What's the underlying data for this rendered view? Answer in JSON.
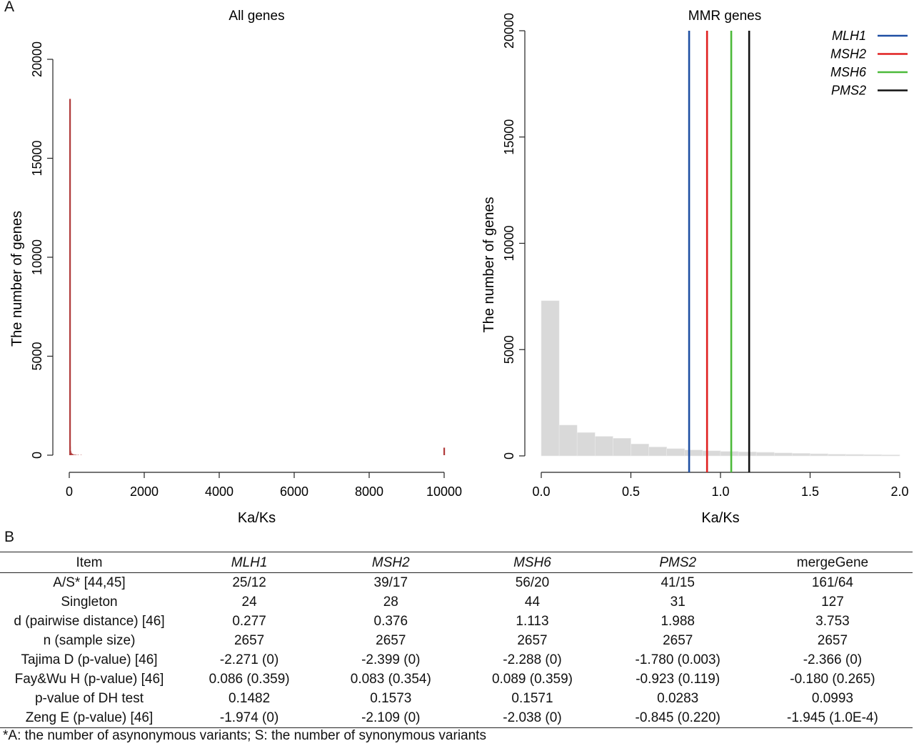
{
  "panel_labels": {
    "a": "A",
    "b": "B"
  },
  "colors": {
    "MLH1": "#1f4fa3",
    "MSH2": "#e02020",
    "MSH6": "#4cba3a",
    "PMS2": "#111111",
    "hist_all": "#b03a3a",
    "hist_mmr": "#d9d9d9"
  },
  "chart_data": [
    {
      "type": "bar",
      "title": "All genes",
      "xlabel": "Ka/Ks",
      "ylabel": "The number of genes",
      "xlim": [
        0,
        10000
      ],
      "ylim": [
        0,
        20000
      ],
      "xticks": [
        "0",
        "2000",
        "4000",
        "6000",
        "8000",
        "10000"
      ],
      "yticks": [
        "0",
        "5000",
        "10000",
        "15000",
        "20000"
      ],
      "bins": [
        {
          "x": 0,
          "value": 18000
        },
        {
          "x": 10,
          "value": 450
        },
        {
          "x": 20,
          "value": 220
        },
        {
          "x": 40,
          "value": 120
        },
        {
          "x": 70,
          "value": 70
        },
        {
          "x": 110,
          "value": 45
        },
        {
          "x": 160,
          "value": 30
        },
        {
          "x": 220,
          "value": 20
        },
        {
          "x": 300,
          "value": 15
        },
        {
          "x": 10000,
          "value": 380
        }
      ]
    },
    {
      "type": "bar",
      "title": "MMR genes",
      "xlabel": "Ka/Ks",
      "ylabel": "The number of genes",
      "xlim": [
        0,
        2.0
      ],
      "ylim": [
        0,
        20000
      ],
      "xticks": [
        "0.0",
        "0.5",
        "1.0",
        "1.5",
        "2.0"
      ],
      "yticks": [
        "0",
        "5000",
        "10000",
        "15000",
        "20000"
      ],
      "bin_width": 0.1,
      "bins": [
        7300,
        1450,
        1100,
        920,
        830,
        560,
        420,
        340,
        280,
        240,
        210,
        190,
        170,
        140,
        120,
        100,
        80,
        70,
        60,
        50
      ],
      "markers": [
        {
          "name": "MLH1",
          "x": 0.825
        },
        {
          "name": "MSH2",
          "x": 0.925
        },
        {
          "name": "MSH6",
          "x": 1.06
        },
        {
          "name": "PMS2",
          "x": 1.16
        }
      ],
      "legend": {
        "placement": "top-right",
        "entries": [
          "MLH1",
          "MSH2",
          "MSH6",
          "PMS2"
        ]
      }
    }
  ],
  "table": {
    "headers": [
      "Item",
      "MLH1",
      "MSH2",
      "MSH6",
      "PMS2",
      "mergeGene"
    ],
    "rows": [
      [
        "A/S* [44,45]",
        "25/12",
        "39/17",
        "56/20",
        "41/15",
        "161/64"
      ],
      [
        "Singleton",
        "24",
        "28",
        "44",
        "31",
        "127"
      ],
      [
        "d (pairwise distance) [46]",
        "0.277",
        "0.376",
        "1.113",
        "1.988",
        "3.753"
      ],
      [
        "n (sample size)",
        "2657",
        "2657",
        "2657",
        "2657",
        "2657"
      ],
      [
        "Tajima D  (p-value) [46]",
        "-2.271 (0)",
        "-2.399 (0)",
        "-2.288 (0)",
        "-1.780 (0.003)",
        "-2.366 (0)"
      ],
      [
        "Fay&Wu H  (p-value) [46]",
        "0.086 (0.359)",
        "0.083 (0.354)",
        "0.089 (0.359)",
        "-0.923 (0.119)",
        "-0.180 (0.265)"
      ],
      [
        "p-value of DH test",
        "0.1482",
        "0.1573",
        "0.1571",
        "0.0283",
        "0.0993"
      ],
      [
        "Zeng E  (p-value) [46]",
        "-1.974 (0)",
        "-2.109 (0)",
        "-2.038 (0)",
        "-0.845 (0.220)",
        "-1.945 (1.0E-4)"
      ]
    ]
  },
  "footnote": "*A: the number of asynonymous variants; S: the number of synonymous variants"
}
